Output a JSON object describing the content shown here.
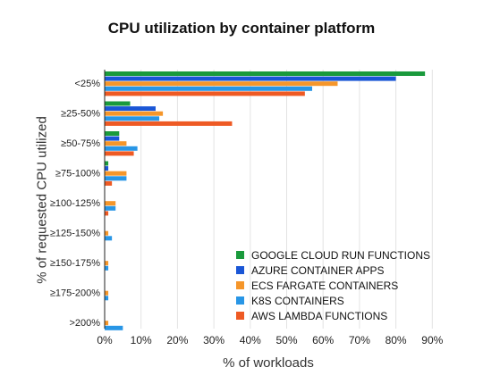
{
  "chart_data": {
    "type": "bar",
    "orientation": "horizontal",
    "title": "CPU utilization by container platform",
    "xlabel": "% of workloads",
    "ylabel": "% of requested CPU utilized",
    "categories": [
      "<25%",
      "≥25-50%",
      "≥50-75%",
      "≥75-100%",
      "≥100-125%",
      "≥125-150%",
      "≥150-175%",
      "≥175-200%",
      ">200%"
    ],
    "xlim": [
      0,
      90
    ],
    "xticks": [
      0,
      10,
      20,
      30,
      40,
      50,
      60,
      70,
      80,
      90
    ],
    "xtick_labels": [
      "0%",
      "10%",
      "20%",
      "30%",
      "40%",
      "50%",
      "60%",
      "70%",
      "80%",
      "90%"
    ],
    "grid": true,
    "legend_position": "bottom-right",
    "series": [
      {
        "name": "GOOGLE CLOUD RUN FUNCTIONS",
        "color": "#1a9a3c",
        "values": [
          88,
          7,
          4,
          1,
          0,
          0,
          0,
          0,
          0
        ]
      },
      {
        "name": "AZURE CONTAINER APPS",
        "color": "#1a56d6",
        "values": [
          80,
          14,
          4,
          1,
          0,
          0,
          0,
          0,
          0
        ]
      },
      {
        "name": "ECS FARGATE CONTAINERS",
        "color": "#f5962a",
        "values": [
          64,
          16,
          6,
          6,
          3,
          1,
          1,
          1,
          1
        ]
      },
      {
        "name": "K8S CONTAINERS",
        "color": "#2896e6",
        "values": [
          57,
          15,
          9,
          6,
          3,
          2,
          1,
          1,
          5
        ]
      },
      {
        "name": "AWS LAMBDA FUNCTIONS",
        "color": "#ee5a24",
        "values": [
          55,
          35,
          8,
          2,
          1,
          0,
          0,
          0,
          0
        ]
      }
    ]
  }
}
